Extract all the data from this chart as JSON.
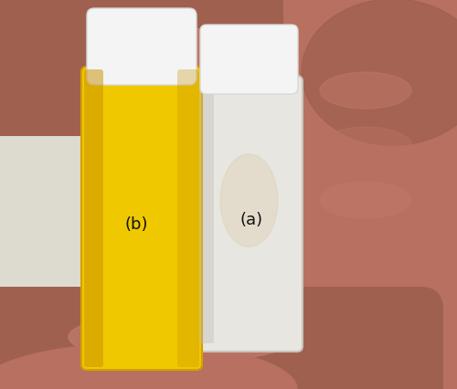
{
  "figure_width": 5.0,
  "figure_height": 4.27,
  "dpi": 100,
  "wall_color": "#dddbd0",
  "hand_color_main": "#b87060",
  "hand_color_dark": "#a06050",
  "hand_color_light": "#c88070",
  "vial_left_color": "#f0c800",
  "vial_left_edge": "#d4a000",
  "vial_right_color": "#e8e6e0",
  "vial_right_edge": "#c8c4bc",
  "vial_cap_color": "#f4f4f4",
  "vial_cap_edge": "#d8d8d8",
  "label_a": "(a)",
  "label_b": "(b)",
  "label_fontsize": 13,
  "label_color": "#111111"
}
